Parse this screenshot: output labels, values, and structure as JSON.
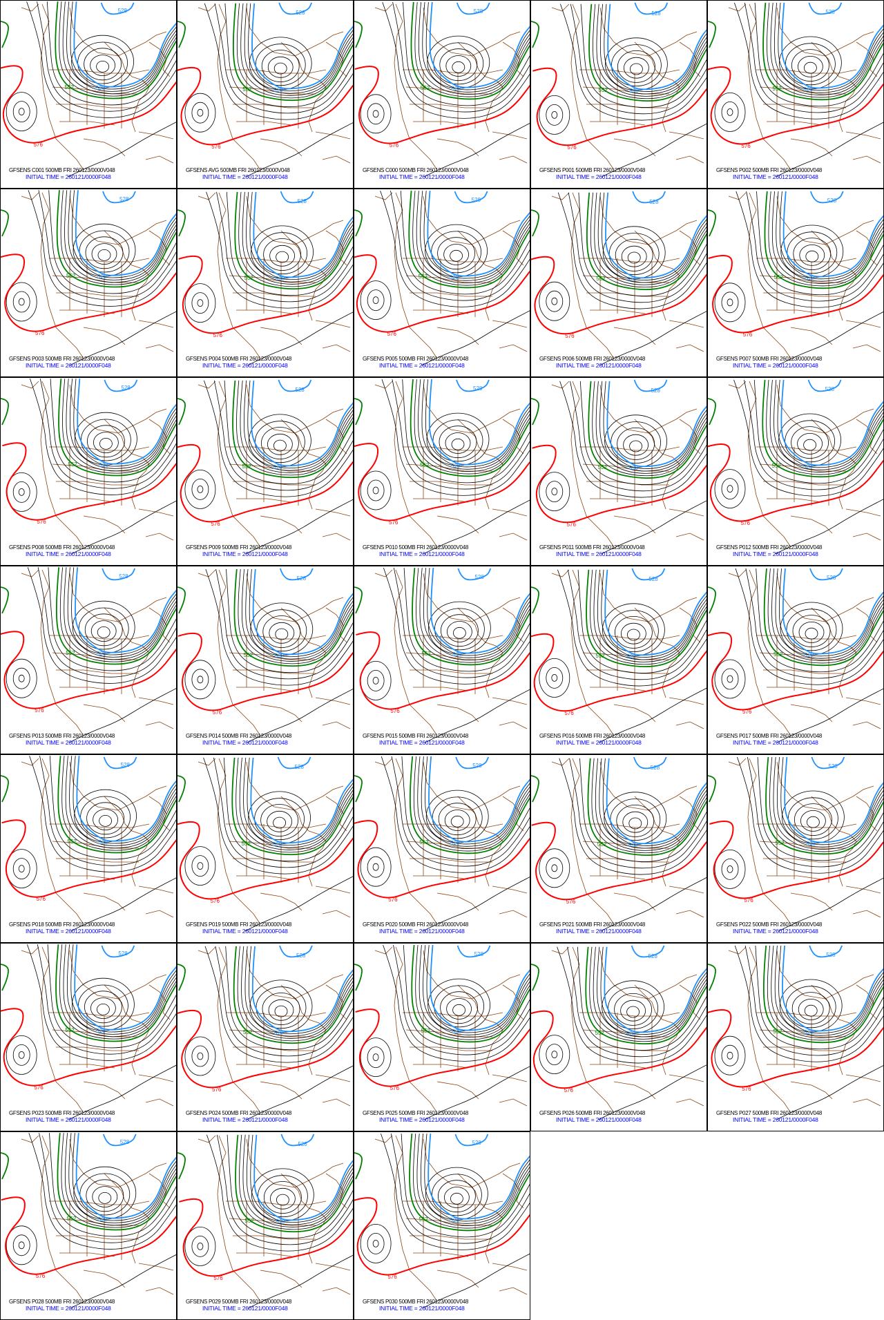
{
  "product": "GFSENS",
  "level": "500MB",
  "valid": "FRI 260123/0000V048",
  "initial_time_label": "INITIAL TIME = 260121/0000F048",
  "contour_labels": {
    "red": "576",
    "green": "552",
    "blue": "528"
  },
  "colors": {
    "red": "#ff0000",
    "green": "#008000",
    "blue": "#1e90ff",
    "black": "#000000",
    "map": "#8b4513",
    "init_text": "#0000ff"
  },
  "panels": [
    {
      "member": "C001",
      "title": "GFSENS C001 500MB FRI 260123/0000V048"
    },
    {
      "member": "AVG",
      "title": "GFSENS AVG 500MB FRI 260123/0000V048"
    },
    {
      "member": "C000",
      "title": "GFSENS C000 500MB FRI 260123/0000V048"
    },
    {
      "member": "P001",
      "title": "GFSENS P001 500MB FRI 260123/0000V048"
    },
    {
      "member": "P002",
      "title": "GFSENS P002 500MB FRI 260123/0000V048"
    },
    {
      "member": "P003",
      "title": "GFSENS P003 500MB FRI 260123/0000V048"
    },
    {
      "member": "P004",
      "title": "GFSENS P004 500MB FRI 260123/0000V048"
    },
    {
      "member": "P005",
      "title": "GFSENS P005 500MB FRI 260123/0000V048"
    },
    {
      "member": "P006",
      "title": "GFSENS P006 500MB FRI 260123/0000V048"
    },
    {
      "member": "P007",
      "title": "GFSENS P007 500MB FRI 260123/0000V048"
    },
    {
      "member": "P008",
      "title": "GFSENS P008 500MB FRI 260123/0000V048"
    },
    {
      "member": "P009",
      "title": "GFSENS P009 500MB FRI 260123/0000V048"
    },
    {
      "member": "P010",
      "title": "GFSENS P010 500MB FRI 260123/0000V048"
    },
    {
      "member": "P011",
      "title": "GFSENS P011 500MB FRI 260123/0000V048"
    },
    {
      "member": "P012",
      "title": "GFSENS P012 500MB FRI 260123/0000V048"
    },
    {
      "member": "P013",
      "title": "GFSENS P013 500MB FRI 260123/0000V048"
    },
    {
      "member": "P014",
      "title": "GFSENS P014 500MB FRI 260123/0000V048"
    },
    {
      "member": "P015",
      "title": "GFSENS P015 500MB FRI 260123/0000V048"
    },
    {
      "member": "P016",
      "title": "GFSENS P016 500MB FRI 260123/0000V048"
    },
    {
      "member": "P017",
      "title": "GFSENS P017 500MB FRI 260123/0000V048"
    },
    {
      "member": "P018",
      "title": "GFSENS P018 500MB FRI 260123/0000V048"
    },
    {
      "member": "P019",
      "title": "GFSENS P019 500MB FRI 260123/0000V048"
    },
    {
      "member": "P020",
      "title": "GFSENS P020 500MB FRI 260123/0000V048"
    },
    {
      "member": "P021",
      "title": "GFSENS P021 500MB FRI 260123/0000V048"
    },
    {
      "member": "P022",
      "title": "GFSENS P022 500MB FRI 260123/0000V048"
    },
    {
      "member": "P023",
      "title": "GFSENS P023 500MB FRI 260123/0000V048"
    },
    {
      "member": "P024",
      "title": "GFSENS P024 500MB FRI 260123/0000V048"
    },
    {
      "member": "P025",
      "title": "GFSENS P025 500MB FRI 260123/0000V048"
    },
    {
      "member": "P026",
      "title": "GFSENS P026 500MB FRI 260123/0000V048"
    },
    {
      "member": "P027",
      "title": "GFSENS P027 500MB FRI 260123/0000V048"
    },
    {
      "member": "P028",
      "title": "GFSENS P028 500MB FRI 260123/0000V048"
    },
    {
      "member": "P029",
      "title": "GFSENS P029 500MB FRI 260123/0000V048"
    },
    {
      "member": "P030",
      "title": "GFSENS P030 500MB FRI 260123/0000V048"
    }
  ]
}
